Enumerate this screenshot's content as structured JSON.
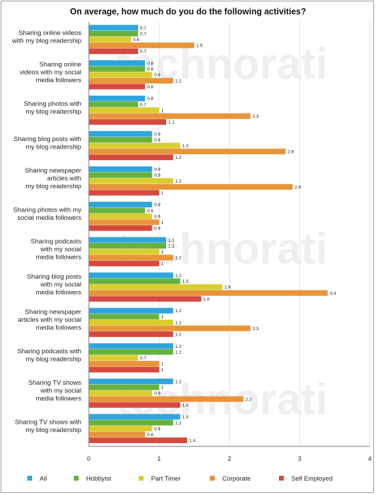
{
  "chart_data": {
    "type": "bar",
    "orientation": "horizontal",
    "title": "On average, how much do you do the following activities?",
    "watermark": "technorati",
    "categories": [
      [
        "Sharing online videos",
        "with my blog readership"
      ],
      [
        "Sharing online",
        "videos with my social",
        "media followers"
      ],
      [
        "Sharing photos with",
        "my blog readership"
      ],
      [
        "Sharing blog posts with",
        "my blog readership"
      ],
      [
        "Sharing newspaper",
        "articles with",
        "my blog readership"
      ],
      [
        "Sharing photos with my",
        "social media followers"
      ],
      [
        "Sharing podcasts",
        "with my social",
        "media followers"
      ],
      [
        "Sharing blog posts",
        "with my social",
        "media followers"
      ],
      [
        "Sharing newspaper",
        "articles with my social",
        "media followers"
      ],
      [
        "Sharing podcasts with",
        "my blog readership"
      ],
      [
        "Sharing TV shows",
        "with my social",
        "media followers"
      ],
      [
        "Sharing TV shows with",
        "my blog readership"
      ]
    ],
    "series": [
      {
        "name": "All",
        "color": "#2ea6dd",
        "values": [
          0.7,
          0.8,
          0.8,
          0.9,
          0.9,
          0.9,
          1.1,
          1.2,
          1.2,
          1.2,
          1.2,
          1.3
        ]
      },
      {
        "name": "Hobbyist",
        "color": "#67b23f",
        "values": [
          0.7,
          0.8,
          0.7,
          0.9,
          0.9,
          0.8,
          1.1,
          1.3,
          1,
          1.2,
          1,
          1.2
        ]
      },
      {
        "name": "Part Timer",
        "color": "#dccd2f",
        "values": [
          0.6,
          0.9,
          1,
          1.3,
          1.2,
          0.9,
          1,
          1.9,
          1.2,
          0.7,
          0.9,
          0.9
        ]
      },
      {
        "name": "Corporate",
        "color": "#e8953a",
        "values": [
          1.5,
          1.2,
          2.3,
          2.8,
          2.9,
          1,
          1.2,
          3.4,
          2.3,
          1,
          2.2,
          0.8
        ]
      },
      {
        "name": "Self Employed",
        "color": "#d6493f",
        "values": [
          0.7,
          0.8,
          1.1,
          1.2,
          1,
          0.9,
          1,
          1.6,
          1.2,
          1,
          1.3,
          1.4
        ]
      }
    ],
    "xlim": [
      0,
      4
    ],
    "xticks": [
      0,
      1,
      2,
      3,
      4
    ],
    "grid": true,
    "legend_position": "bottom"
  }
}
